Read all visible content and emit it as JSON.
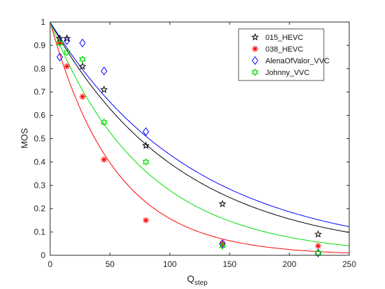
{
  "chart_data": {
    "type": "scatter",
    "xlabel": "Q",
    "xlabel_sub": "step",
    "ylabel": "MOS",
    "xlim": [
      0,
      250
    ],
    "ylim": [
      0,
      1
    ],
    "xticks": [
      "0",
      "50",
      "100",
      "150",
      "200",
      "250"
    ],
    "yticks": [
      "0",
      "0.1",
      "0.2",
      "0.3",
      "0.4",
      "0.5",
      "0.6",
      "0.7",
      "0.8",
      "0.9",
      "1"
    ],
    "grid": false,
    "legend_position": "top-right",
    "series": [
      {
        "name": "015_HEVC",
        "marker": "star",
        "color": "#000000",
        "points": [
          [
            8,
            0.93
          ],
          [
            14,
            0.93
          ],
          [
            27,
            0.81
          ],
          [
            45,
            0.71
          ],
          [
            80,
            0.47
          ],
          [
            144,
            0.22
          ],
          [
            224,
            0.09
          ]
        ],
        "fit_decay": 0.0093
      },
      {
        "name": "038_HEVC",
        "marker": "asterisk",
        "color": "#ff0000",
        "points": [
          [
            8,
            0.91
          ],
          [
            14,
            0.81
          ],
          [
            27,
            0.68
          ],
          [
            45,
            0.41
          ],
          [
            80,
            0.15
          ],
          [
            144,
            0.05
          ],
          [
            224,
            0.04
          ]
        ],
        "fit_decay": 0.0185
      },
      {
        "name": "AlenaOfValor_VVC",
        "marker": "diamond",
        "color": "#0000ff",
        "points": [
          [
            8,
            0.85
          ],
          [
            14,
            0.92
          ],
          [
            27,
            0.91
          ],
          [
            45,
            0.79
          ],
          [
            80,
            0.53
          ],
          [
            144,
            0.05
          ],
          [
            224,
            0.01
          ]
        ],
        "fit_decay": 0.0084
      },
      {
        "name": "Johnny_VVC",
        "marker": "hexagram",
        "color": "#00dd00",
        "points": [
          [
            8,
            0.91
          ],
          [
            14,
            0.87
          ],
          [
            27,
            0.84
          ],
          [
            45,
            0.57
          ],
          [
            80,
            0.4
          ],
          [
            144,
            0.04
          ],
          [
            224,
            0.01
          ]
        ],
        "fit_decay": 0.0128
      }
    ]
  }
}
